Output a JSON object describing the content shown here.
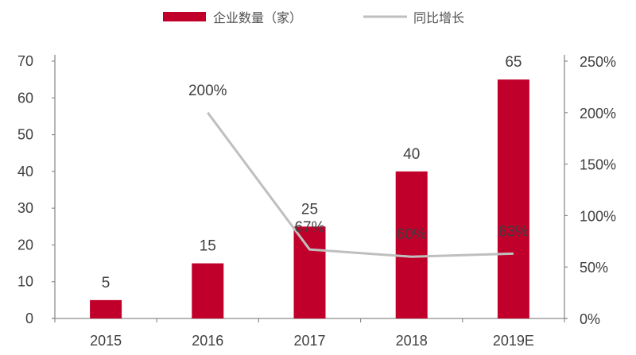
{
  "chart_data": {
    "type": "bar+line",
    "title": "",
    "categories": [
      "2015",
      "2016",
      "2017",
      "2018",
      "2019E"
    ],
    "series": [
      {
        "name": "企业数量（家）",
        "type": "bar",
        "axis": "left",
        "color": "#C0002B",
        "values": [
          5,
          15,
          25,
          40,
          65
        ],
        "labels": [
          "5",
          "15",
          "25",
          "40",
          "65"
        ]
      },
      {
        "name": "同比增长",
        "type": "line",
        "axis": "right",
        "color": "#BFBFBF",
        "values": [
          null,
          200,
          67,
          60,
          63
        ],
        "labels": [
          "",
          "200%",
          "67%",
          "60%",
          "63%"
        ]
      }
    ],
    "left_axis": {
      "min": 0,
      "max": 70,
      "step": 10,
      "ticks": [
        "0",
        "10",
        "20",
        "30",
        "40",
        "50",
        "60",
        "70"
      ]
    },
    "right_axis": {
      "min": 0,
      "max": 250,
      "step": 50,
      "ticks": [
        "0%",
        "50%",
        "100%",
        "150%",
        "200%",
        "250%"
      ]
    },
    "legend": {
      "position": "top",
      "items": [
        "企业数量（家）",
        "同比增长"
      ]
    },
    "grid": false
  }
}
